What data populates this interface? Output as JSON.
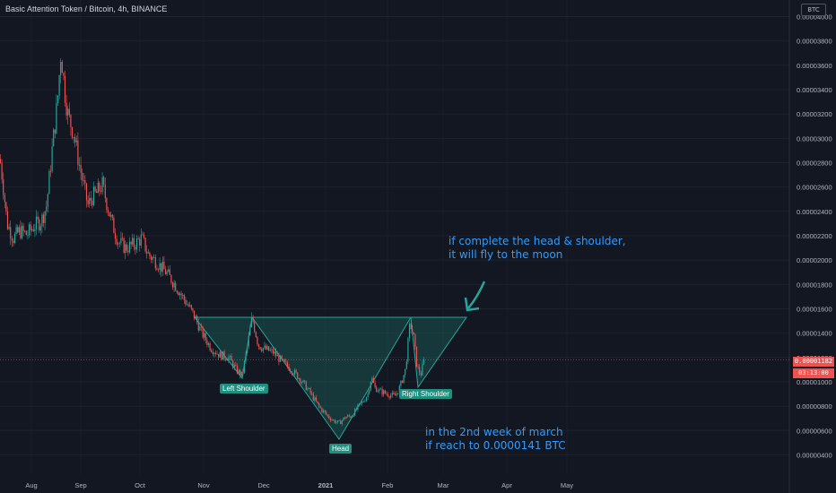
{
  "header": {
    "title": "Basic Attention Token / Bitcoin, 4h, BINANCE",
    "currency_badge": "BTC"
  },
  "colors": {
    "background": "#131722",
    "up": "#26a69a",
    "down": "#ef5350",
    "annotation": "#2e9cff",
    "pattern_fill": "#1f8f7f"
  },
  "price_tag": {
    "last_price": "0.00001182",
    "countdown": "03:13:00"
  },
  "annotations": {
    "note_top": "if complete the head & shoulder,\nit will fly to the moon",
    "note_bottom": "in the 2nd week of march\nif reach to 0.0000141 BTC",
    "left_shoulder": "Left Shoulder",
    "head": "Head",
    "right_shoulder": "Right Shoulder"
  },
  "chart_data": {
    "type": "candlestick",
    "title": "Basic Attention Token / Bitcoin, 4h, BINANCE",
    "y_axis_ticks": [
      "0.00004000",
      "0.00003800",
      "0.00003600",
      "0.00003400",
      "0.00003200",
      "0.00003000",
      "0.00002800",
      "0.00002600",
      "0.00002400",
      "0.00002200",
      "0.00002000",
      "0.00001800",
      "0.00001600",
      "0.00001400",
      "0.00001200",
      "0.00001000",
      "0.00000800",
      "0.00000600",
      "0.00000400"
    ],
    "x_axis_ticks": [
      "Aug",
      "Sep",
      "Oct",
      "Nov",
      "Dec",
      "2021",
      "Feb",
      "Mar",
      "Apr",
      "May"
    ],
    "ylim": [
      3.6e-06,
      4.1e-05
    ],
    "close_path": [
      [
        0,
        2.83e-05
      ],
      [
        3,
        2.65e-05
      ],
      [
        8,
        2.3e-05
      ],
      [
        15,
        2.18e-05
      ],
      [
        22,
        2.24e-05
      ],
      [
        30,
        2.21e-05
      ],
      [
        38,
        2.28e-05
      ],
      [
        46,
        2.32e-05
      ],
      [
        52,
        2.45e-05
      ],
      [
        58,
        2.9e-05
      ],
      [
        64,
        3.3e-05
      ],
      [
        68,
        3.72e-05
      ],
      [
        72,
        3.4e-05
      ],
      [
        76,
        3.18e-05
      ],
      [
        82,
        3.05e-05
      ],
      [
        88,
        2.8e-05
      ],
      [
        93,
        2.62e-05
      ],
      [
        98,
        2.45e-05
      ],
      [
        103,
        2.52e-05
      ],
      [
        108,
        2.55e-05
      ],
      [
        114,
        2.62e-05
      ],
      [
        118,
        2.5e-05
      ],
      [
        125,
        2.3e-05
      ],
      [
        132,
        2.15e-05
      ],
      [
        140,
        2.1e-05
      ],
      [
        150,
        2.13e-05
      ],
      [
        158,
        2.18e-05
      ],
      [
        165,
        2.05e-05
      ],
      [
        175,
        1.98e-05
      ],
      [
        185,
        1.9e-05
      ],
      [
        195,
        1.8e-05
      ],
      [
        205,
        1.68e-05
      ],
      [
        212,
        1.6e-05
      ],
      [
        218,
        1.52e-05
      ],
      [
        225,
        1.4e-05
      ],
      [
        235,
        1.28e-05
      ],
      [
        245,
        1.22e-05
      ],
      [
        255,
        1.2e-05
      ],
      [
        263,
        1.1e-05
      ],
      [
        270,
        1.05e-05
      ],
      [
        276,
        1.3e-05
      ],
      [
        281,
        1.53e-05
      ],
      [
        288,
        1.3e-05
      ],
      [
        295,
        1.27e-05
      ],
      [
        305,
        1.24e-05
      ],
      [
        315,
        1.16e-05
      ],
      [
        325,
        1.1e-05
      ],
      [
        335,
        1.02e-05
      ],
      [
        345,
        9.2e-06
      ],
      [
        355,
        8e-06
      ],
      [
        365,
        7.2e-06
      ],
      [
        372,
        6.8e-06
      ],
      [
        378,
        6.6e-06
      ],
      [
        385,
        7.1e-06
      ],
      [
        392,
        7.2e-06
      ],
      [
        398,
        7.8e-06
      ],
      [
        405,
        8.4e-06
      ],
      [
        410,
        9e-06
      ],
      [
        414,
        1.04e-05
      ],
      [
        418,
        9.5e-06
      ],
      [
        425,
        9.2e-06
      ],
      [
        432,
        9e-06
      ],
      [
        440,
        8.8e-06
      ],
      [
        446,
        9.6e-06
      ],
      [
        452,
        1.1e-05
      ],
      [
        457,
        1.48e-05
      ],
      [
        461,
        1.38e-05
      ],
      [
        465,
        1.12e-05
      ],
      [
        469,
        1.06e-05
      ],
      [
        473,
        1.18e-05
      ]
    ],
    "overlays": {
      "head_and_shoulders_triangles": "drawn as filled teal triangles connecting shoulder/head lows to neckline at ~0.0000156",
      "projection_triangle": "dashed-outline triangle from right shoulder to target area"
    }
  }
}
